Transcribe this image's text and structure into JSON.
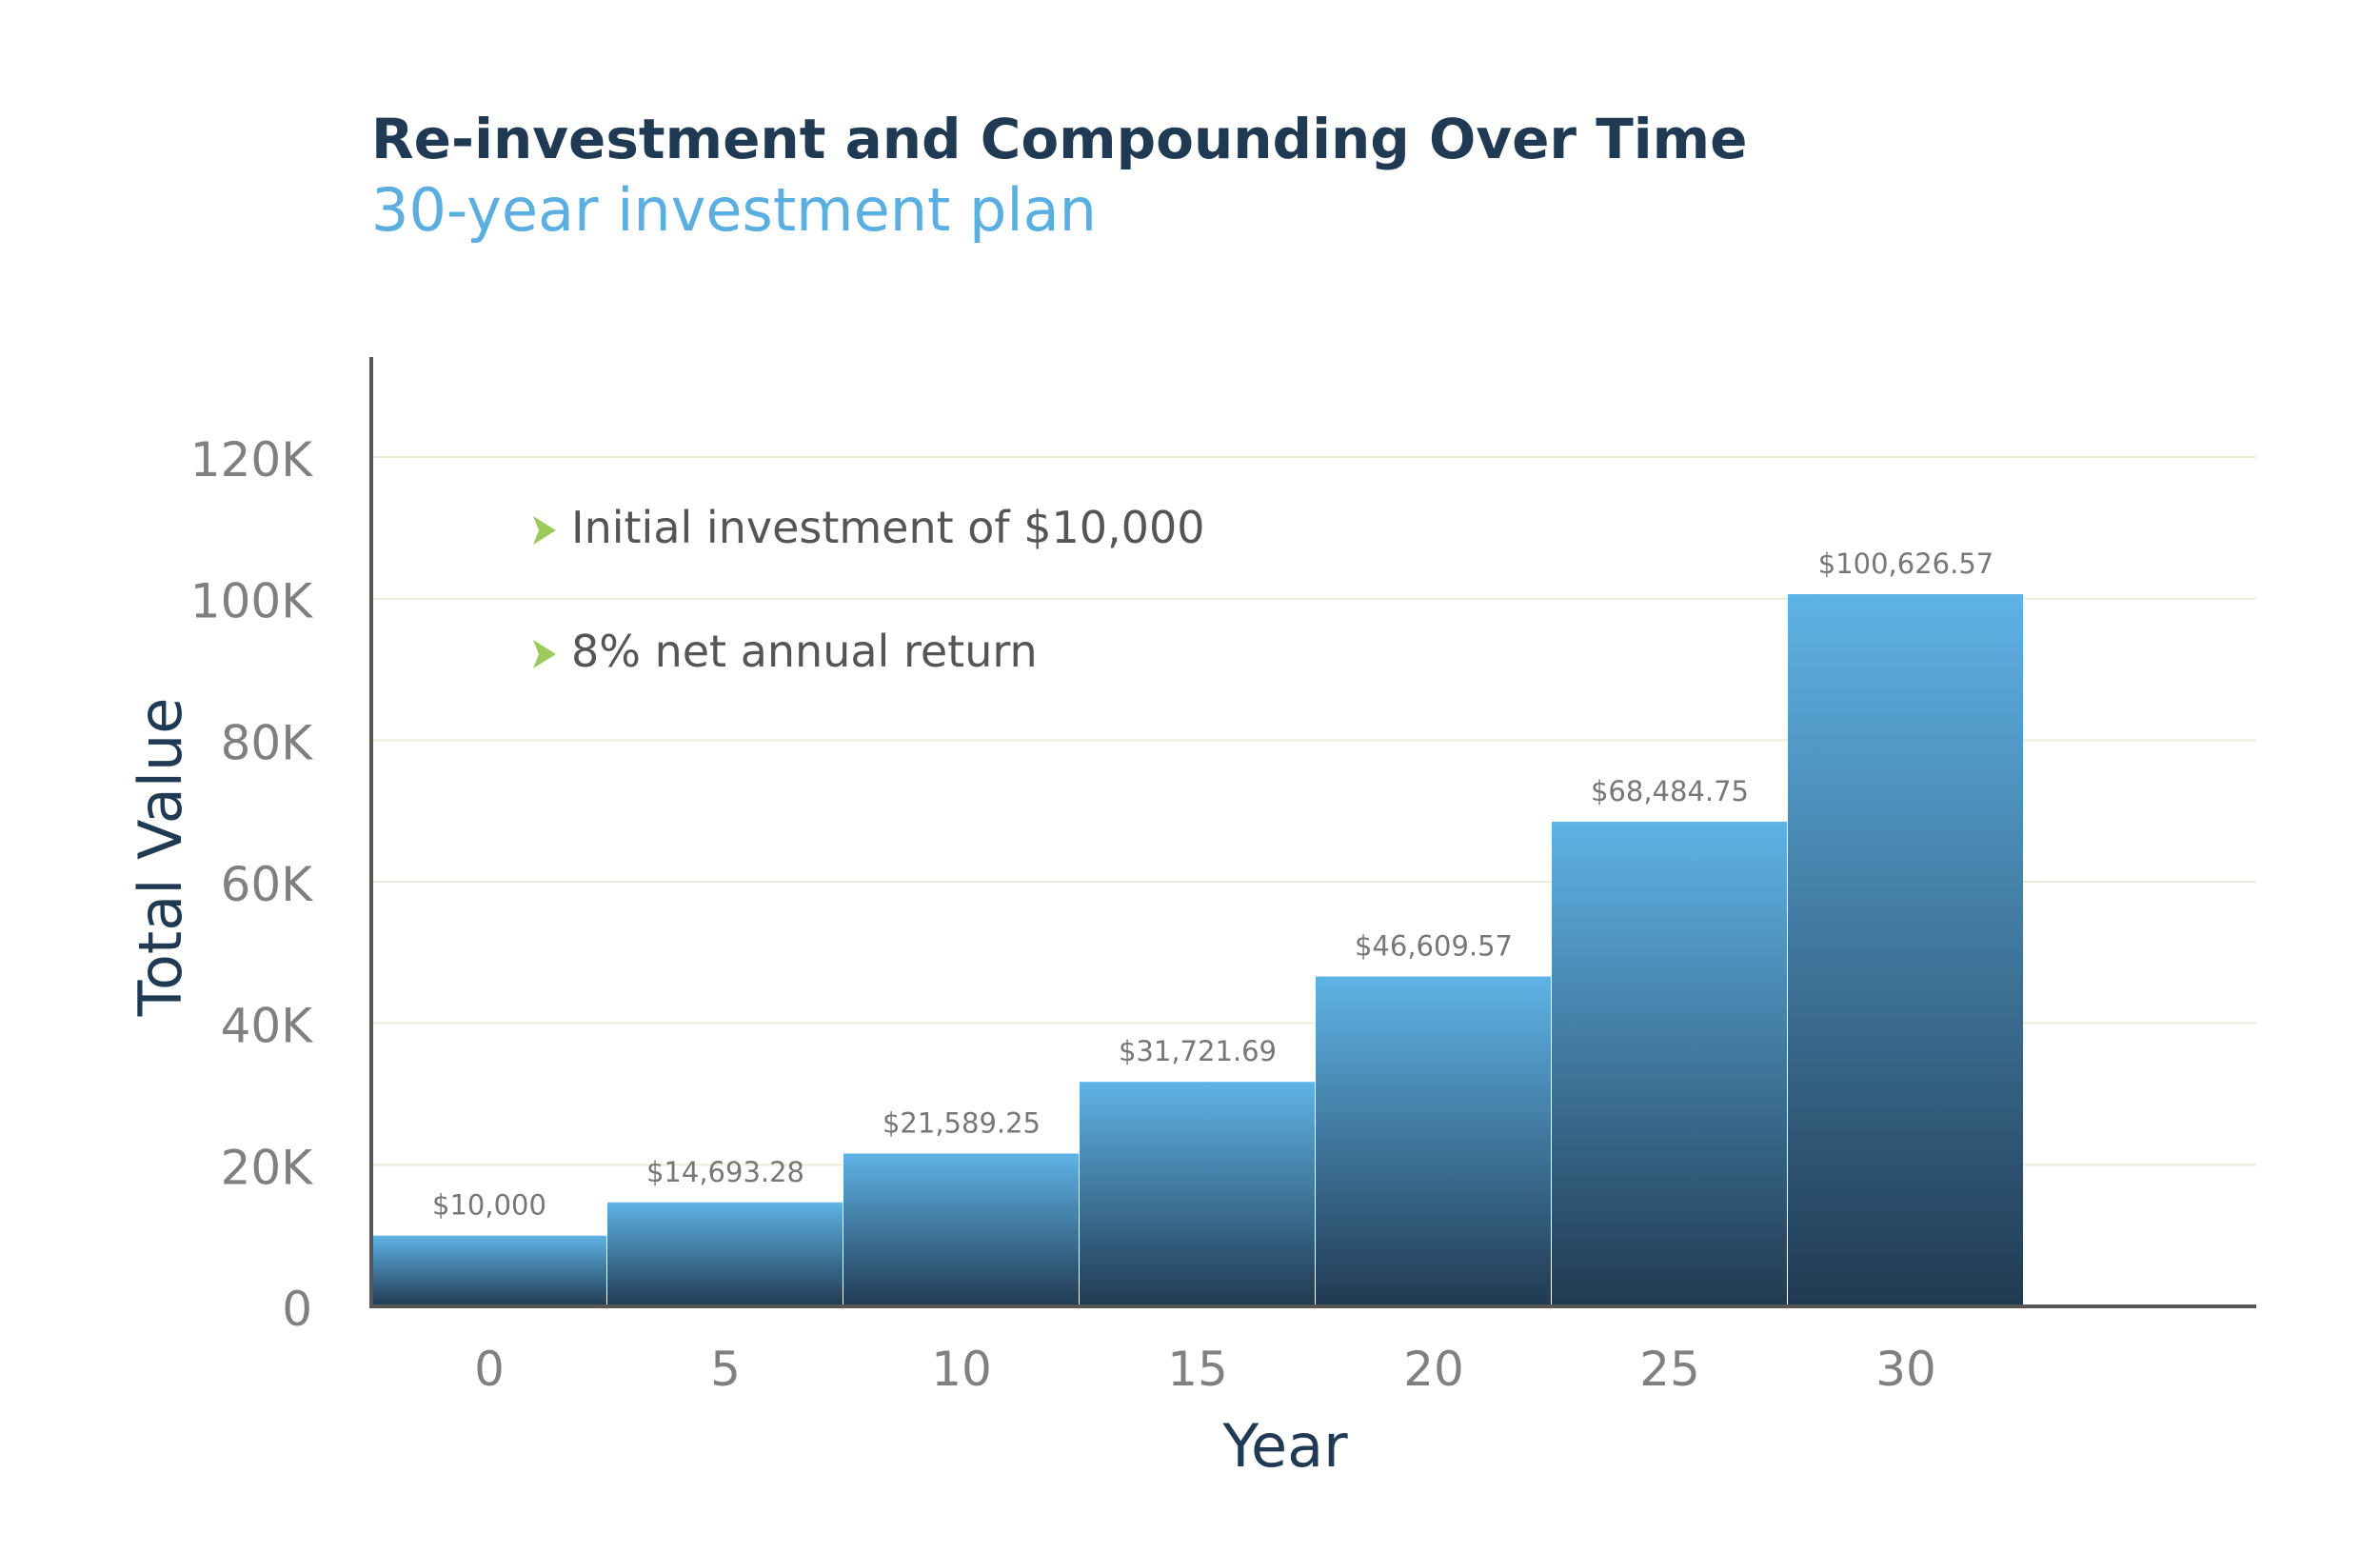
{
  "chart_data": {
    "type": "bar",
    "title": "Re-investment and Compounding Over Time",
    "subtitle": "30-year investment plan",
    "xlabel": "Year",
    "ylabel": "Total Value",
    "categories": [
      "0",
      "5",
      "10",
      "15",
      "20",
      "25",
      "30"
    ],
    "values": [
      10000,
      14693.28,
      21589.25,
      31721.69,
      46609.57,
      68484.75,
      100626.57
    ],
    "data_labels": [
      "$10,000",
      "$14,693.28",
      "$21,589.25",
      "$31,721.69",
      "$46,609.57",
      "$68,484.75",
      "$100,626.57"
    ],
    "ylim": [
      0,
      130000
    ],
    "yticks": [
      0,
      20000,
      40000,
      60000,
      80000,
      100000,
      120000
    ],
    "ytick_labels": [
      "0",
      "20K",
      "40K",
      "60K",
      "80K",
      "100K",
      "120K"
    ],
    "grid": true,
    "annotations": [
      "Initial investment of $10,000",
      "8% net annual return"
    ],
    "colors": {
      "bar_top": "#5fb3e6",
      "bar_bottom": "#213a52",
      "title": "#1f3a52",
      "subtitle": "#5aaee0",
      "axis": "#555555",
      "grid": "#e7efd9",
      "tick_text": "#808080",
      "label_text": "#777777",
      "bullet": "#9ccb5b",
      "annotation_text": "#555555"
    }
  }
}
